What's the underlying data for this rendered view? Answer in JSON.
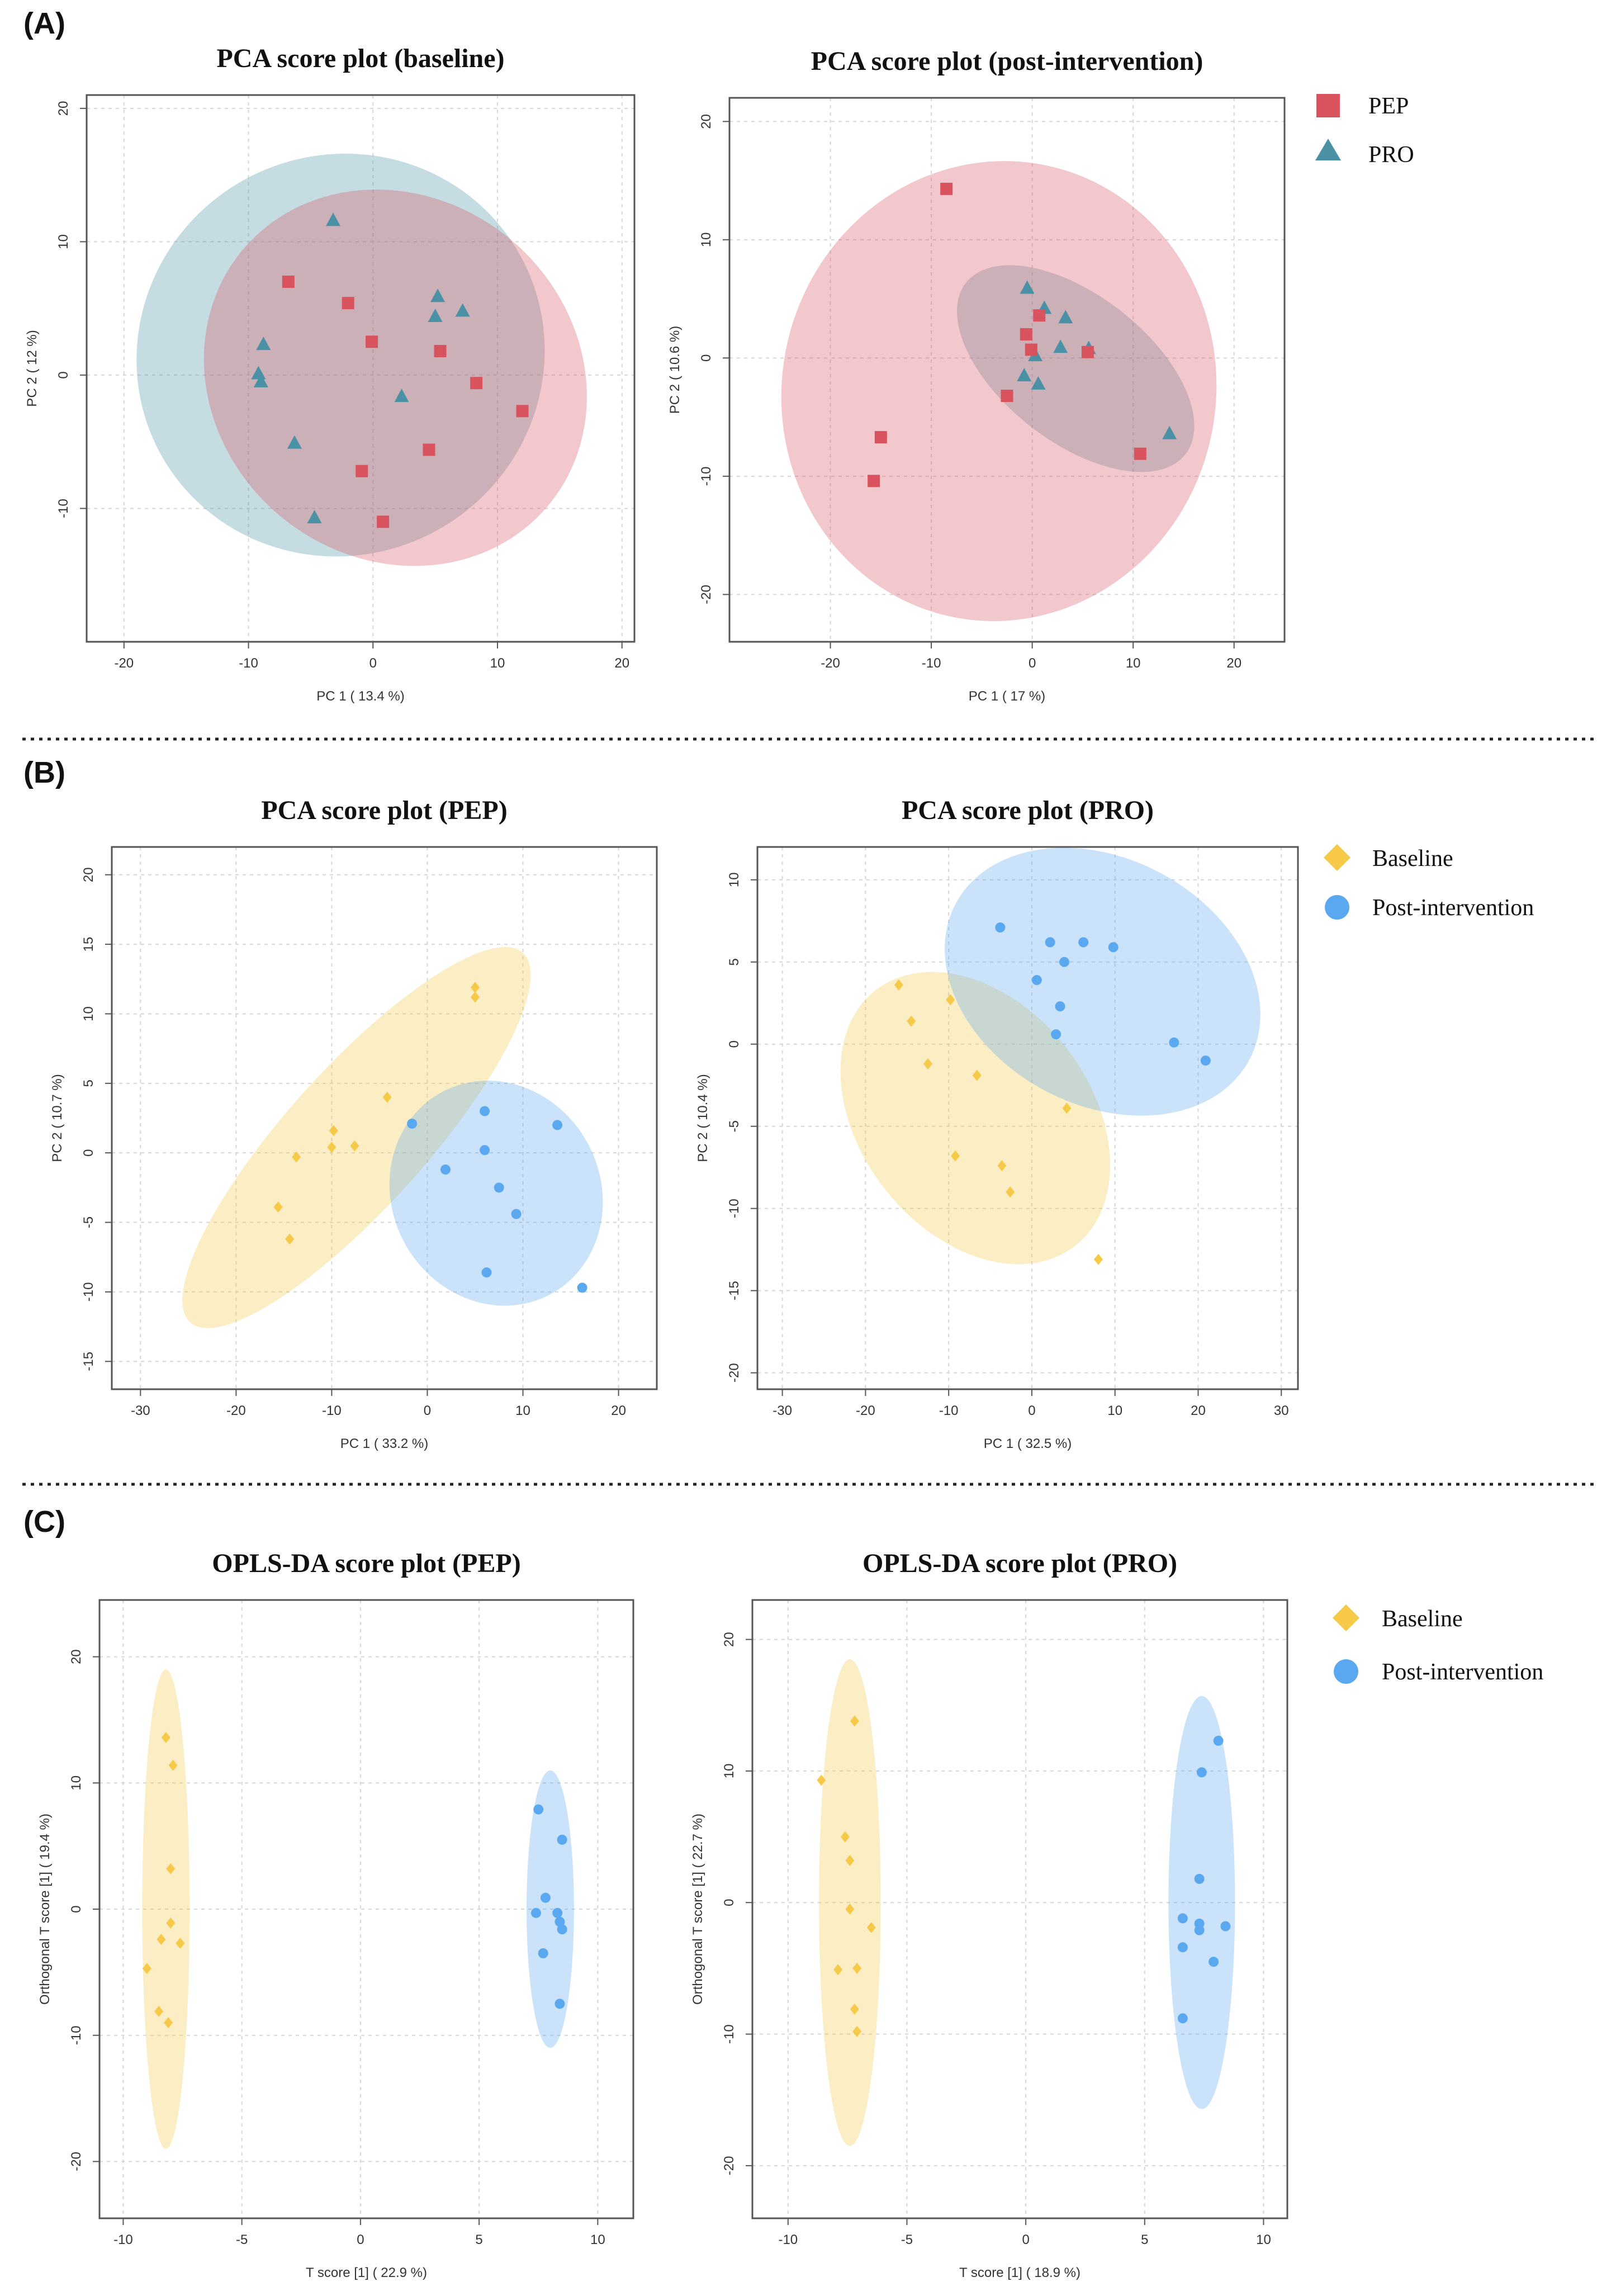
{
  "panels": [
    {
      "letter": "(A)"
    },
    {
      "letter": "(B)"
    },
    {
      "letter": "(C)"
    }
  ],
  "legends": [
    {
      "items": [
        {
          "label": "PEP",
          "color": "#d9535f",
          "shape": "square"
        },
        {
          "label": "PRO",
          "color": "#4a91a6",
          "shape": "triangle"
        }
      ]
    },
    {
      "items": [
        {
          "label": "Baseline",
          "color": "#f7c948",
          "shape": "diamond"
        },
        {
          "label": "Post-intervention",
          "color": "#5aa9f0",
          "shape": "circle"
        }
      ]
    },
    {
      "items": [
        {
          "label": "Baseline",
          "color": "#f7c948",
          "shape": "diamond"
        },
        {
          "label": "Post-intervention",
          "color": "#5aa9f0",
          "shape": "circle"
        }
      ]
    }
  ],
  "chart_data": [
    {
      "type": "scatter",
      "title": "PCA score plot (baseline)",
      "xlabel": "PC 1 ( 13.4 %)",
      "ylabel": "PC 2 ( 12 %)",
      "xlim": [
        -23,
        21
      ],
      "ylim": [
        -20,
        21
      ],
      "xticks": [
        -20,
        -10,
        0,
        10,
        20
      ],
      "yticks": [
        -10,
        0,
        10,
        20
      ],
      "series": [
        {
          "name": "PRO",
          "shape": "triangle",
          "color": "#4a91a6",
          "x": [
            -3.2,
            -8.8,
            -9.2,
            -9.0,
            -6.3,
            -4.7,
            2.3,
            5.0,
            5.2,
            7.2
          ],
          "y": [
            11.6,
            2.3,
            0.1,
            -0.5,
            -5.1,
            -10.7,
            -1.6,
            4.4,
            5.9,
            4.8
          ],
          "ellipse": {
            "cx": -2.6,
            "cy": 1.5,
            "rx": 16.5,
            "ry": 15.0,
            "angle": 30
          }
        },
        {
          "name": "PEP",
          "shape": "square",
          "color": "#d9535f",
          "x": [
            -6.8,
            -2.0,
            -0.1,
            5.4,
            8.3,
            12.0,
            4.5,
            -0.9,
            0.8
          ],
          "y": [
            7.0,
            5.4,
            2.5,
            1.8,
            -0.6,
            -2.7,
            -5.6,
            -7.2,
            -11.0
          ],
          "ellipse": {
            "cx": 1.8,
            "cy": -0.2,
            "rx": 16.0,
            "ry": 13.5,
            "angle": -40
          }
        }
      ]
    },
    {
      "type": "scatter",
      "title": "PCA score plot (post-intervention)",
      "xlabel": "PC 1 ( 17 %)",
      "ylabel": "PC 2 ( 10.6 %)",
      "xlim": [
        -30,
        25
      ],
      "ylim": [
        -24,
        22
      ],
      "xticks": [
        -20,
        -10,
        0,
        10,
        20
      ],
      "yticks": [
        -20,
        -10,
        0,
        10,
        20
      ],
      "series": [
        {
          "name": "PRO",
          "shape": "triangle",
          "color": "#4a91a6",
          "x": [
            -0.5,
            1.2,
            3.3,
            2.8,
            5.6,
            -0.8,
            0.3,
            0.6,
            13.6
          ],
          "y": [
            5.9,
            4.2,
            3.4,
            0.9,
            0.8,
            -1.5,
            0.2,
            -2.2,
            -6.4
          ],
          "ellipse": {
            "cx": 4.3,
            "cy": -0.9,
            "rx": 13.8,
            "ry": 6.2,
            "angle": -38
          }
        },
        {
          "name": "PEP",
          "shape": "square",
          "color": "#d9535f",
          "x": [
            -8.5,
            0.7,
            -0.6,
            -0.1,
            5.5,
            -2.5,
            -15.0,
            -15.7,
            10.7
          ],
          "y": [
            14.3,
            3.6,
            2.0,
            0.7,
            0.5,
            -3.2,
            -6.7,
            -10.4,
            -8.1
          ],
          "ellipse": {
            "cx": -3.3,
            "cy": -2.8,
            "rx": 21.5,
            "ry": 19.5,
            "angle": -12
          }
        }
      ]
    },
    {
      "type": "scatter",
      "title": "PCA score plot (PEP)",
      "xlabel": "PC 1 ( 33.2 %)",
      "ylabel": "PC 2 ( 10.7 %)",
      "xlim": [
        -33,
        24
      ],
      "ylim": [
        -17,
        22
      ],
      "xticks": [
        -30,
        -20,
        -10,
        0,
        10,
        20
      ],
      "yticks": [
        -15,
        -10,
        -5,
        0,
        5,
        10,
        15,
        20
      ],
      "series": [
        {
          "name": "Baseline",
          "shape": "diamond",
          "color": "#f7c948",
          "x": [
            5.0,
            5.0,
            -4.2,
            -9.8,
            -7.6,
            -10.0,
            -13.7,
            -15.6,
            -14.4
          ],
          "y": [
            11.9,
            11.2,
            4.0,
            1.6,
            0.5,
            0.4,
            -0.3,
            -3.9,
            -6.2
          ],
          "ellipse": {
            "cx": -7.4,
            "cy": 1.1,
            "rx": 26.0,
            "ry": 5.0,
            "angle": 48
          }
        },
        {
          "name": "Post-intervention",
          "shape": "circle",
          "color": "#5aa9f0",
          "x": [
            -1.6,
            6.0,
            13.6,
            6.0,
            1.9,
            7.5,
            9.3,
            6.2,
            16.2
          ],
          "y": [
            2.1,
            3.0,
            2.0,
            0.2,
            -1.2,
            -2.5,
            -4.4,
            -8.6,
            -9.7
          ],
          "ellipse": {
            "cx": 7.2,
            "cy": -2.9,
            "rx": 12.0,
            "ry": 7.5,
            "angle": -62
          }
        }
      ]
    },
    {
      "type": "scatter",
      "title": "PCA score plot (PRO)",
      "xlabel": "PC 1 ( 32.5 %)",
      "ylabel": "PC 2 ( 10.4 %)",
      "xlim": [
        -33,
        32
      ],
      "ylim": [
        -21,
        12
      ],
      "xticks": [
        -30,
        -20,
        -10,
        0,
        10,
        20,
        30
      ],
      "yticks": [
        -20,
        -15,
        -10,
        -5,
        0,
        5,
        10
      ],
      "series": [
        {
          "name": "Baseline",
          "shape": "diamond",
          "color": "#f7c948",
          "x": [
            -16.0,
            -14.5,
            -9.8,
            -12.5,
            -6.6,
            4.2,
            -9.2,
            -3.6,
            -2.6,
            8.0
          ],
          "y": [
            3.6,
            1.4,
            2.7,
            -1.2,
            -1.9,
            -3.9,
            -6.8,
            -7.4,
            -9.0,
            -13.1
          ],
          "ellipse": {
            "cx": -6.8,
            "cy": -4.5,
            "rx": 19.5,
            "ry": 7.0,
            "angle": -52
          }
        },
        {
          "name": "Post-intervention",
          "shape": "circle",
          "color": "#5aa9f0",
          "x": [
            -3.8,
            2.2,
            6.2,
            9.8,
            0.6,
            3.9,
            3.4,
            2.9,
            17.1,
            20.9
          ],
          "y": [
            7.1,
            6.2,
            6.2,
            5.9,
            3.9,
            5.0,
            2.3,
            0.6,
            0.1,
            -1.0
          ],
          "ellipse": {
            "cx": 8.5,
            "cy": 3.8,
            "rx": 20.0,
            "ry": 7.5,
            "angle": -28
          }
        }
      ]
    },
    {
      "type": "scatter",
      "title": "OPLS-DA  score plot (PEP)",
      "xlabel": "T score [1] ( 22.9 %)",
      "ylabel": "Orthogonal T score [1] ( 19.4 %)",
      "xlim": [
        -11,
        11.5
      ],
      "ylim": [
        -24.5,
        24.5
      ],
      "xticks": [
        -10,
        -5,
        0,
        5,
        10
      ],
      "yticks": [
        -20,
        -10,
        0,
        10,
        20
      ],
      "series": [
        {
          "name": "Baseline",
          "shape": "diamond",
          "color": "#f7c948",
          "x": [
            -8.2,
            -7.9,
            -8.0,
            -8.0,
            -7.6,
            -8.4,
            -7.6,
            -9.0,
            -8.5,
            -8.1
          ],
          "y": [
            13.6,
            11.4,
            3.2,
            -1.1,
            -2.7,
            -2.4,
            -2.7,
            -4.7,
            -8.1,
            -9.0
          ],
          "ellipse": {
            "cx": -8.2,
            "cy": 0.0,
            "rx": 1.0,
            "ry": 19.0,
            "angle": 0
          }
        },
        {
          "name": "Post-intervention",
          "shape": "circle",
          "color": "#5aa9f0",
          "x": [
            7.5,
            8.5,
            7.8,
            7.4,
            8.3,
            8.4,
            8.5,
            7.7,
            8.4
          ],
          "y": [
            7.9,
            5.5,
            0.9,
            -0.3,
            -0.3,
            -1.0,
            -1.6,
            -3.5,
            -7.5
          ],
          "ellipse": {
            "cx": 8.0,
            "cy": 0.0,
            "rx": 1.0,
            "ry": 11.0,
            "angle": 0
          }
        }
      ]
    },
    {
      "type": "scatter",
      "title": "OPLS-DA  score plot (PRO)",
      "xlabel": "T score [1] ( 18.9 %)",
      "ylabel": "Orthogonal T score [1] ( 22.7 %)",
      "xlim": [
        -11.5,
        11
      ],
      "ylim": [
        -24,
        23
      ],
      "xticks": [
        -10,
        -5,
        0,
        5,
        10
      ],
      "yticks": [
        -20,
        -10,
        0,
        10,
        20
      ],
      "series": [
        {
          "name": "Baseline",
          "shape": "diamond",
          "color": "#f7c948",
          "x": [
            -7.2,
            -8.6,
            -7.6,
            -7.4,
            -7.4,
            -6.5,
            -7.9,
            -7.1,
            -7.2,
            -7.1
          ],
          "y": [
            13.8,
            9.3,
            5.0,
            3.2,
            -0.5,
            -1.9,
            -5.1,
            -5.0,
            -8.1,
            -9.8
          ],
          "ellipse": {
            "cx": -7.4,
            "cy": 0.0,
            "rx": 1.3,
            "ry": 18.5,
            "angle": 0
          }
        },
        {
          "name": "Post-intervention",
          "shape": "circle",
          "color": "#5aa9f0",
          "x": [
            8.1,
            7.4,
            7.3,
            6.6,
            7.3,
            8.4,
            7.3,
            6.6,
            7.9,
            6.6
          ],
          "y": [
            12.3,
            9.9,
            1.8,
            -1.2,
            -1.6,
            -1.8,
            -2.1,
            -3.4,
            -4.5,
            -8.8
          ],
          "ellipse": {
            "cx": 7.4,
            "cy": 0.0,
            "rx": 1.4,
            "ry": 15.7,
            "angle": 0
          }
        }
      ]
    }
  ]
}
